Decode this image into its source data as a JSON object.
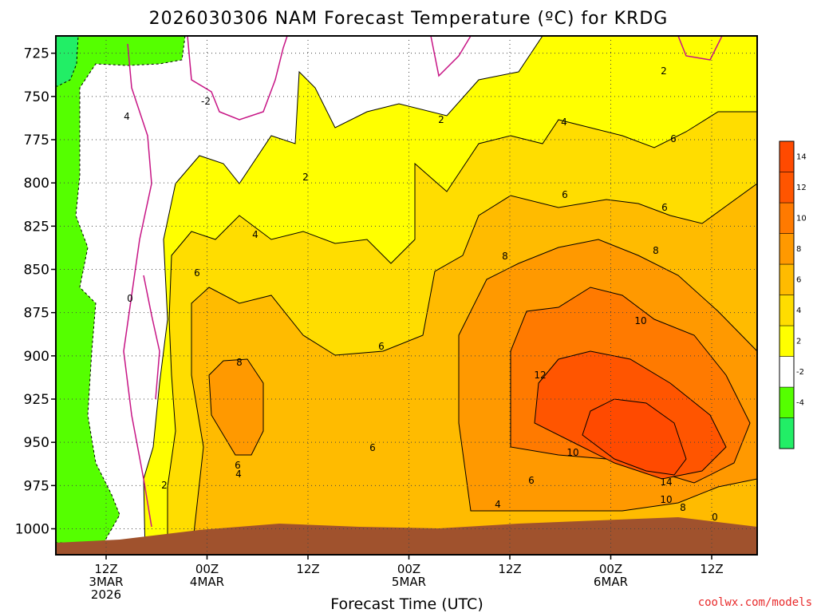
{
  "chart_data": {
    "type": "heatmap",
    "title": "2026030306 NAM Forecast Temperature (ºC) for KRDG",
    "xlabel": "Forecast Time (UTC)",
    "ylabel": "",
    "credit": "coolwx.com/models",
    "y_axis": {
      "unit": "hPa",
      "ticks": [
        "725",
        "750",
        "775",
        "800",
        "825",
        "850",
        "875",
        "900",
        "925",
        "950",
        "975",
        "1000"
      ],
      "ylim": [
        1015,
        715
      ]
    },
    "x_axis": {
      "ticks": [
        {
          "lines": [
            "12Z",
            "3MAR",
            "2026"
          ]
        },
        {
          "lines": [
            "00Z",
            "4MAR"
          ]
        },
        {
          "lines": [
            "12Z"
          ]
        },
        {
          "lines": [
            "00Z",
            "5MAR"
          ]
        },
        {
          "lines": [
            "12Z"
          ]
        },
        {
          "lines": [
            "00Z",
            "6MAR"
          ]
        },
        {
          "lines": [
            "12Z"
          ]
        }
      ]
    },
    "colorbar": {
      "bins": [
        {
          "lo": -6,
          "hi": -4,
          "color": "#22ee66"
        },
        {
          "lo": -4,
          "hi": -2,
          "color": "#55ff00"
        },
        {
          "lo": -2,
          "hi": 2,
          "color": "#ffffff"
        },
        {
          "lo": 2,
          "hi": 4,
          "color": "#ffff00"
        },
        {
          "lo": 4,
          "hi": 6,
          "color": "#ffdd00"
        },
        {
          "lo": 6,
          "hi": 8,
          "color": "#ffbb00"
        },
        {
          "lo": 8,
          "hi": 10,
          "color": "#ff9900"
        },
        {
          "lo": 10,
          "hi": 12,
          "color": "#ff7a00"
        },
        {
          "lo": 12,
          "hi": 14,
          "color": "#ff5500"
        },
        {
          "lo": 14,
          "hi": 16,
          "color": "#ff4a00"
        }
      ],
      "tick_labels": [
        "-4",
        "-2",
        "2",
        "4",
        "6",
        "8",
        "10",
        "12",
        "14"
      ]
    },
    "contour_labels": [
      "0",
      "-2",
      "2",
      "2",
      "4",
      "4",
      "2",
      "4",
      "6",
      "6",
      "8",
      "8",
      "6",
      "8",
      "10",
      "12",
      "6",
      "6",
      "4",
      "2",
      "6",
      "10",
      "14",
      "10",
      "8",
      "6",
      "4",
      "0",
      "6"
    ],
    "legend": "right",
    "grid": true,
    "ground_color": "#a0522d"
  }
}
